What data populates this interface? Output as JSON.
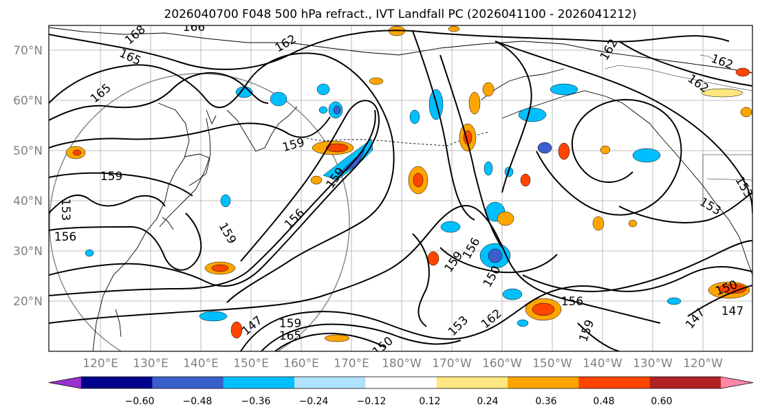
{
  "map": {
    "title": "2026040700 F048 500 hPa refract., IVT Landfall PC (2026041100 - 2026041212)",
    "lat_labels": [
      "70°N",
      "60°N",
      "50°N",
      "40°N",
      "30°N",
      "20°N"
    ],
    "lon_labels": [
      "120°E",
      "130°E",
      "140°E",
      "150°E",
      "160°E",
      "170°E",
      "180°W",
      "170°W",
      "160°W",
      "150°W",
      "140°W",
      "130°W",
      "120°W"
    ],
    "contour_labels": [
      "168",
      "166",
      "165",
      "165",
      "162",
      "162",
      "162",
      "162",
      "162",
      "159",
      "159",
      "159",
      "159",
      "159",
      "159",
      "156",
      "156",
      "156",
      "156",
      "153",
      "153",
      "153",
      "153",
      "150",
      "150",
      "150",
      "147",
      "147",
      "147",
      "165",
      "159"
    ],
    "label_color": "#808080"
  },
  "colorbar": {
    "ticks": [
      "−0.60",
      "−0.48",
      "−0.36",
      "−0.24",
      "−0.12",
      "0.12",
      "0.24",
      "0.36",
      "0.48",
      "0.60"
    ],
    "colors": [
      "#9932cc",
      "#00008b",
      "#3a5fcd",
      "#00bfff",
      "#b0e2ff",
      "#ffffff",
      "#ffe680",
      "#ffa500",
      "#ff4500",
      "#b22222",
      "#ff88aa"
    ]
  }
}
